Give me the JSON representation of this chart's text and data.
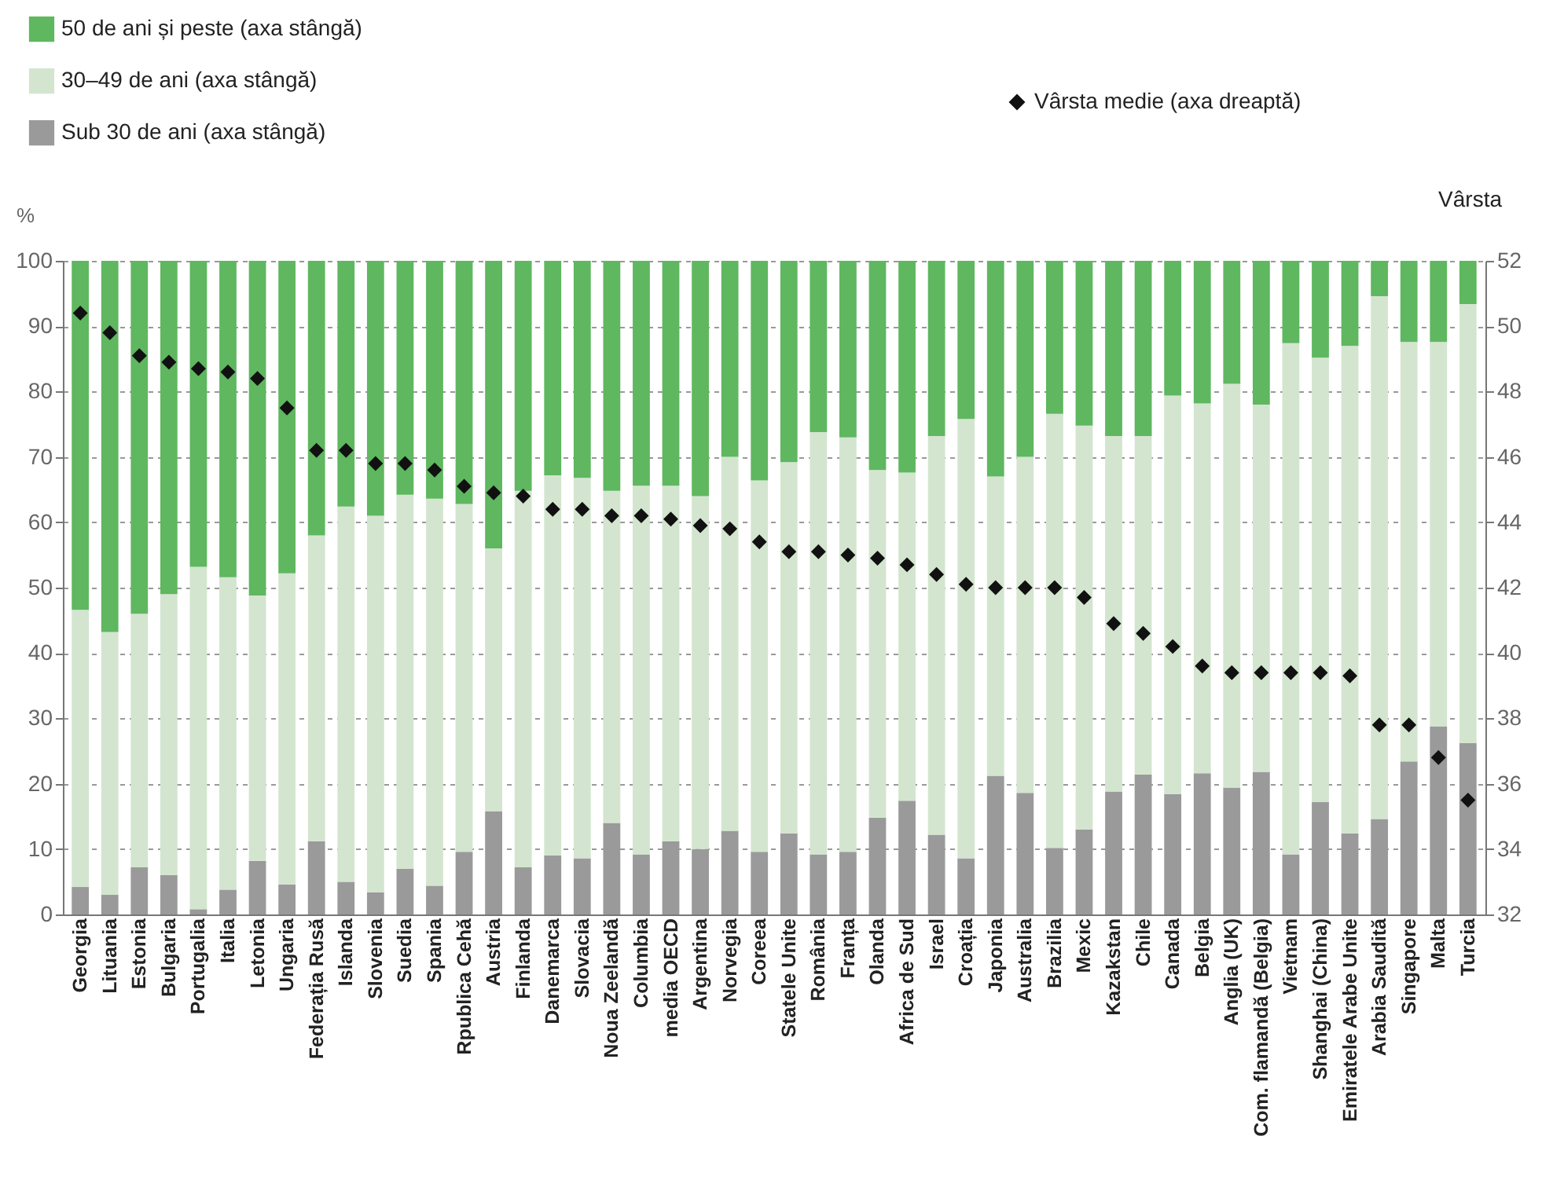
{
  "chart_data": {
    "type": "bar",
    "stacked": true,
    "ylabel": "%",
    "y2label": "Vârsta",
    "ylim": [
      0,
      100
    ],
    "yticks": [
      0,
      10,
      20,
      30,
      40,
      50,
      60,
      70,
      80,
      90,
      100
    ],
    "y2lim": [
      32,
      52
    ],
    "y2ticks": [
      32,
      34,
      36,
      38,
      40,
      42,
      44,
      46,
      48,
      50,
      52
    ],
    "grid": "y",
    "legend": "top left",
    "categories": [
      "Georgia",
      "Lituania",
      "Estonia",
      "Bulgaria",
      "Portugalia",
      "Italia",
      "Letonia",
      "Ungaria",
      "Federația Rusă",
      "Islanda",
      "Slovenia",
      "Suedia",
      "Spania",
      "Rpublica Cehă",
      "Austria",
      "Finlanda",
      "Danemarca",
      "Slovacia",
      "Noua Zeelandă",
      "Columbia",
      "media OECD",
      "Argentina",
      "Norvegia",
      "Coreea",
      "Statele Unite",
      "România",
      "Franța",
      "Olanda",
      "Africa de Sud",
      "Israel",
      "Croația",
      "Japonia",
      "Australia",
      "Brazilia",
      "Mexic",
      "Kazakstan",
      "Chile",
      "Canada",
      "Belgia",
      "Anglia (UK)",
      "Com. flamandă (Belgia)",
      "Vietnam",
      "Shanghai (China)",
      "Emiratele Arabe Unite",
      "Arabia Saudită",
      "Singapore",
      "Malta",
      "Turcia"
    ],
    "series": [
      {
        "name": "Sub 30 de ani (axa stângă)",
        "color": "#9a9a9a",
        "values": [
          4.2,
          3.0,
          7.2,
          6.0,
          0.8,
          3.8,
          8.2,
          4.6,
          11.2,
          5.0,
          3.4,
          7.0,
          4.4,
          9.6,
          15.8,
          7.2,
          9.0,
          8.6,
          14.0,
          9.2,
          11.2,
          10.0,
          12.8,
          9.6,
          12.4,
          9.2,
          9.6,
          14.8,
          17.4,
          12.2,
          8.6,
          21.2,
          18.6,
          10.2,
          13.0,
          18.8,
          21.4,
          18.4,
          21.6,
          19.4,
          21.8,
          9.2,
          17.2,
          12.4,
          14.6,
          23.4,
          28.8,
          26.2
        ]
      },
      {
        "name": "30–49 de ani (axa stângă)",
        "color": "#d3e5cf",
        "values": [
          42.4,
          40.2,
          38.8,
          43.0,
          52.4,
          47.8,
          40.6,
          47.6,
          46.8,
          57.4,
          57.6,
          57.2,
          59.2,
          53.2,
          40.2,
          57.6,
          58.2,
          58.2,
          50.8,
          56.4,
          54.4,
          54.0,
          57.2,
          56.8,
          56.8,
          64.6,
          63.4,
          53.2,
          50.2,
          61.0,
          67.2,
          45.8,
          51.4,
          66.4,
          61.8,
          54.4,
          51.8,
          61.0,
          56.6,
          61.8,
          56.2,
          78.2,
          68.0,
          74.6,
          80.0,
          64.2,
          58.8,
          67.2
        ]
      },
      {
        "name": "50 de ani și peste (axa stângă)",
        "color": "#5fb760",
        "values": [
          53.4,
          56.8,
          54.0,
          51.0,
          46.8,
          48.4,
          51.2,
          47.8,
          42.0,
          37.6,
          39.0,
          35.8,
          36.4,
          37.2,
          44.0,
          35.2,
          32.8,
          33.2,
          35.2,
          34.4,
          34.4,
          36.0,
          30.0,
          33.6,
          30.8,
          26.2,
          27.0,
          32.0,
          32.4,
          26.8,
          24.2,
          33.0,
          30.0,
          23.4,
          25.2,
          26.8,
          26.8,
          20.6,
          21.8,
          18.8,
          22.0,
          12.6,
          14.8,
          13.0,
          5.4,
          12.4,
          12.4,
          6.6
        ]
      },
      {
        "name": "Vârsta medie (axa dreaptă)",
        "type": "scatter",
        "axis": "y2",
        "marker": "diamond",
        "color": "#111111",
        "values": [
          50.4,
          49.8,
          49.1,
          48.9,
          48.7,
          48.6,
          48.4,
          47.5,
          46.2,
          46.2,
          45.8,
          45.8,
          45.6,
          45.1,
          44.9,
          44.8,
          44.4,
          44.4,
          44.2,
          44.2,
          44.1,
          43.9,
          43.8,
          43.4,
          43.1,
          43.1,
          43.0,
          42.9,
          42.7,
          42.4,
          42.1,
          42.0,
          42.0,
          42.0,
          41.7,
          40.9,
          40.6,
          40.2,
          39.6,
          39.4,
          39.4,
          39.4,
          39.4,
          39.3,
          37.8,
          37.8,
          36.8,
          35.5
        ]
      }
    ]
  }
}
